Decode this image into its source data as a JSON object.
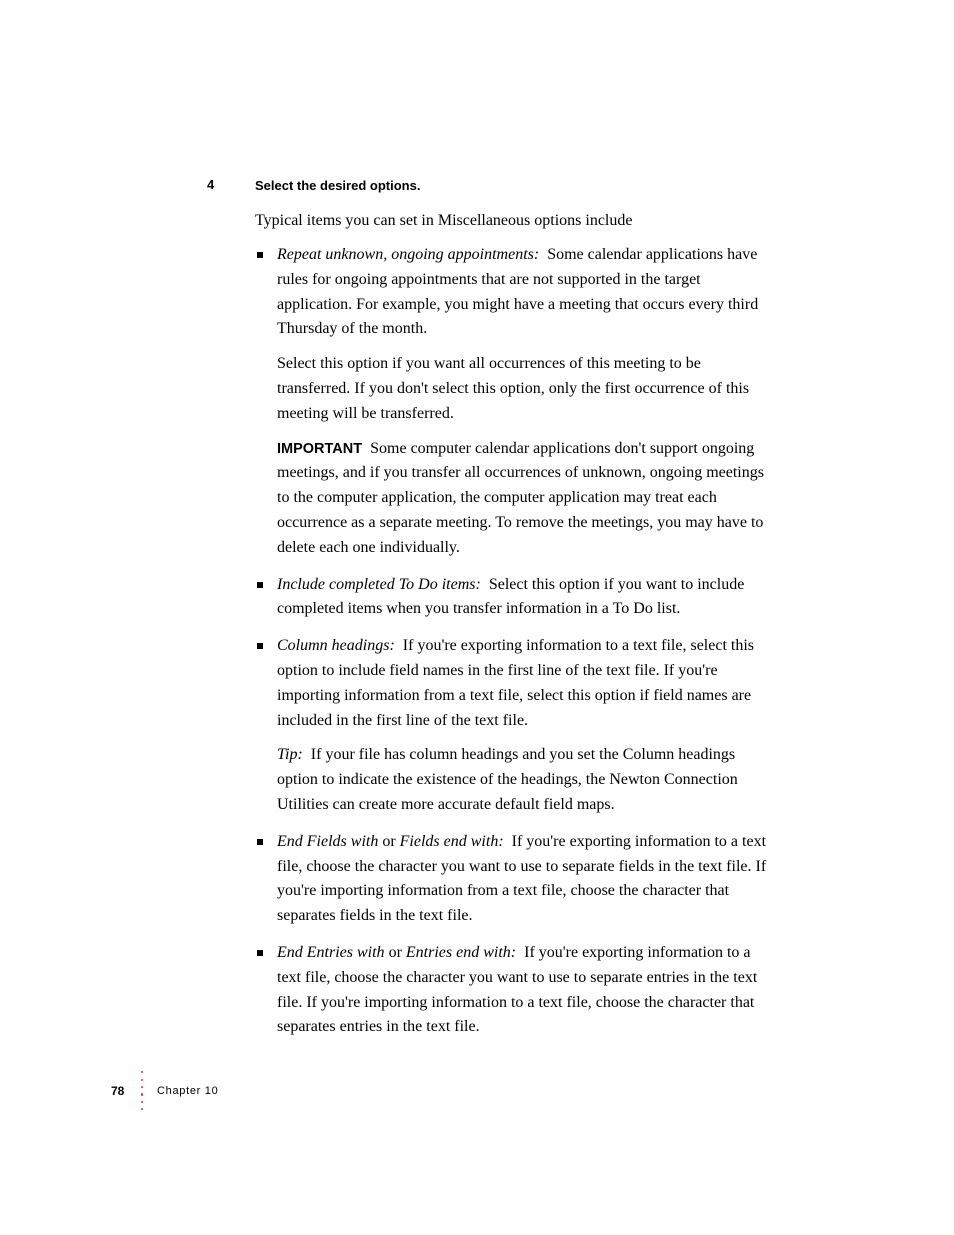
{
  "step": {
    "number": "4",
    "heading": "Select the desired options."
  },
  "intro": "Typical items you can set in Miscellaneous options include",
  "items": [
    {
      "term": "Repeat unknown, ongoing appointments:",
      "body": "Some calendar applications have rules for ongoing appointments that are not supported in the target application. For example, you might have a meeting that occurs every third Thursday of the month.",
      "extra1": "Select this option if you want all occurrences of this meeting to be transferred. If you don't select this option, only the first occurrence of this meeting will be transferred.",
      "important_label": "IMPORTANT",
      "important_body": "Some computer calendar applications don't support ongoing meetings, and if you transfer all occurrences of unknown, ongoing meetings to the computer application, the computer application may treat each occurrence as a separate meeting. To remove the meetings, you may have to delete each one individually."
    },
    {
      "term": "Include completed To Do items:",
      "body": "Select this option if you want to include completed items when you transfer information in a To Do list."
    },
    {
      "term": "Column headings:",
      "body": "If you're exporting information to a text file, select this option to include field names in the first line of the text file. If you're importing information from a text file, select this option if field names are included in the first line of the text file.",
      "tip_term": "Tip:",
      "tip_body": "If your file has column headings and you set the Column headings option to indicate the existence of the headings, the Newton Connection Utilities can create more accurate default field maps."
    },
    {
      "term": "End Fields with",
      "or": " or ",
      "term2": "Fields end with:",
      "body": "If you're exporting information to a text file, choose the character you want to use to separate fields in the text file. If you're importing information from a text file, choose the character that separates fields in the text file."
    },
    {
      "term": "End Entries with",
      "or": " or ",
      "term2": "Entries end with:",
      "body": "If you're exporting information to a text file, choose the character you want to use to separate entries in the text file. If you're importing information to a text file, choose the character that separates entries in the text file."
    }
  ],
  "footer": {
    "page": "78",
    "chapter": "Chapter 10"
  },
  "colors": {
    "dot": "#c6374d"
  }
}
